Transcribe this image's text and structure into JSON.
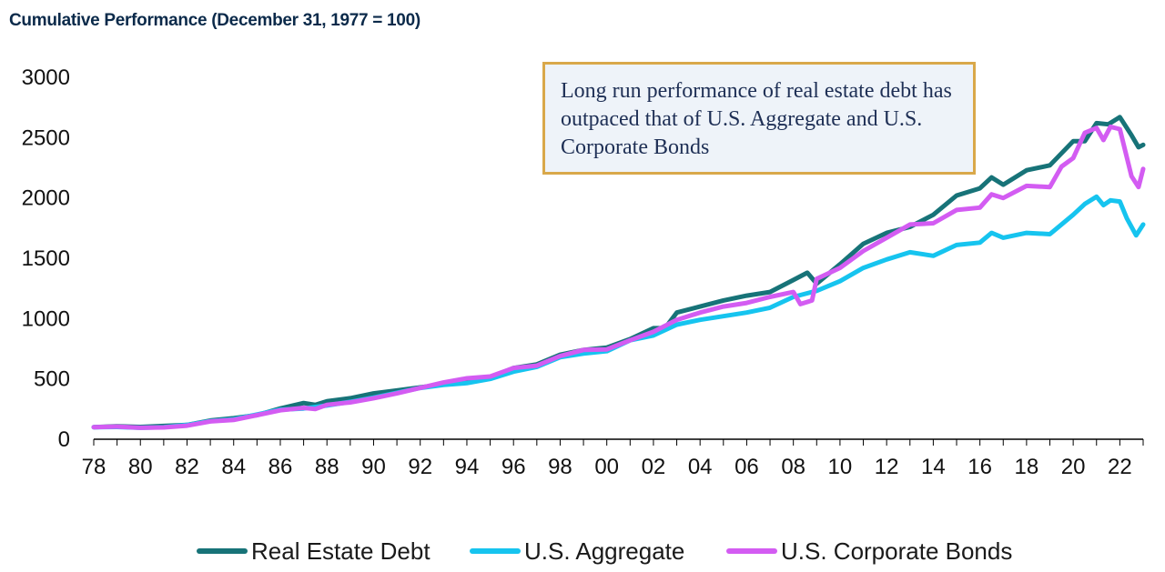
{
  "chart_data": {
    "type": "line",
    "title": "Cumulative Performance (December 31, 1977 = 100)",
    "annotation": "Long run performance of real estate debt has outpaced that of U.S. Aggregate and U.S. Corporate Bonds",
    "ylim": [
      0,
      3000
    ],
    "xlim": [
      1978,
      2023
    ],
    "yticks": [
      0,
      500,
      1000,
      1500,
      2000,
      2500,
      3000
    ],
    "xticks": [
      {
        "value": 1978,
        "label": "78"
      },
      {
        "value": 1980,
        "label": "80"
      },
      {
        "value": 1982,
        "label": "82"
      },
      {
        "value": 1984,
        "label": "84"
      },
      {
        "value": 1986,
        "label": "86"
      },
      {
        "value": 1988,
        "label": "88"
      },
      {
        "value": 1990,
        "label": "90"
      },
      {
        "value": 1992,
        "label": "92"
      },
      {
        "value": 1994,
        "label": "94"
      },
      {
        "value": 1996,
        "label": "96"
      },
      {
        "value": 1998,
        "label": "98"
      },
      {
        "value": 2000,
        "label": "00"
      },
      {
        "value": 2002,
        "label": "02"
      },
      {
        "value": 2004,
        "label": "04"
      },
      {
        "value": 2006,
        "label": "06"
      },
      {
        "value": 2008,
        "label": "08"
      },
      {
        "value": 2010,
        "label": "10"
      },
      {
        "value": 2012,
        "label": "12"
      },
      {
        "value": 2014,
        "label": "14"
      },
      {
        "value": 2016,
        "label": "16"
      },
      {
        "value": 2018,
        "label": "18"
      },
      {
        "value": 2020,
        "label": "20"
      },
      {
        "value": 2022,
        "label": "22"
      }
    ],
    "grid": false,
    "legend_position": "bottom",
    "series": [
      {
        "name": "Real Estate Debt",
        "color": "#177378",
        "points": [
          [
            1978,
            100
          ],
          [
            1979,
            108
          ],
          [
            1980,
            102
          ],
          [
            1981,
            110
          ],
          [
            1982,
            118
          ],
          [
            1983,
            155
          ],
          [
            1984,
            175
          ],
          [
            1985,
            200
          ],
          [
            1986,
            255
          ],
          [
            1987,
            300
          ],
          [
            1987.5,
            285
          ],
          [
            1988,
            315
          ],
          [
            1989,
            340
          ],
          [
            1990,
            380
          ],
          [
            1991,
            405
          ],
          [
            1992,
            430
          ],
          [
            1993,
            455
          ],
          [
            1994,
            475
          ],
          [
            1995,
            510
          ],
          [
            1996,
            590
          ],
          [
            1997,
            620
          ],
          [
            1998,
            700
          ],
          [
            1999,
            740
          ],
          [
            2000,
            760
          ],
          [
            2001,
            830
          ],
          [
            2002,
            920
          ],
          [
            2002.5,
            920
          ],
          [
            2003,
            1050
          ],
          [
            2004,
            1100
          ],
          [
            2005,
            1150
          ],
          [
            2006,
            1190
          ],
          [
            2007,
            1220
          ],
          [
            2008,
            1320
          ],
          [
            2008.6,
            1380
          ],
          [
            2009,
            1290
          ],
          [
            2010,
            1450
          ],
          [
            2011,
            1620
          ],
          [
            2012,
            1710
          ],
          [
            2013,
            1760
          ],
          [
            2014,
            1860
          ],
          [
            2015,
            2020
          ],
          [
            2016,
            2080
          ],
          [
            2016.5,
            2170
          ],
          [
            2017,
            2110
          ],
          [
            2018,
            2230
          ],
          [
            2019,
            2270
          ],
          [
            2020,
            2470
          ],
          [
            2020.5,
            2470
          ],
          [
            2021,
            2620
          ],
          [
            2021.5,
            2610
          ],
          [
            2022,
            2670
          ],
          [
            2022.5,
            2520
          ],
          [
            2022.8,
            2420
          ],
          [
            2023,
            2440
          ]
        ]
      },
      {
        "name": "U.S. Aggregate",
        "color": "#16c4ef",
        "points": [
          [
            1978,
            100
          ],
          [
            1979,
            102
          ],
          [
            1980,
            95
          ],
          [
            1981,
            100
          ],
          [
            1982,
            118
          ],
          [
            1983,
            150
          ],
          [
            1984,
            165
          ],
          [
            1985,
            205
          ],
          [
            1986,
            245
          ],
          [
            1987,
            255
          ],
          [
            1988,
            280
          ],
          [
            1989,
            310
          ],
          [
            1990,
            345
          ],
          [
            1991,
            385
          ],
          [
            1992,
            425
          ],
          [
            1993,
            450
          ],
          [
            1994,
            465
          ],
          [
            1995,
            500
          ],
          [
            1996,
            560
          ],
          [
            1997,
            600
          ],
          [
            1998,
            680
          ],
          [
            1999,
            710
          ],
          [
            2000,
            730
          ],
          [
            2001,
            820
          ],
          [
            2002,
            860
          ],
          [
            2003,
            950
          ],
          [
            2004,
            990
          ],
          [
            2005,
            1020
          ],
          [
            2006,
            1050
          ],
          [
            2007,
            1090
          ],
          [
            2008,
            1180
          ],
          [
            2009,
            1230
          ],
          [
            2010,
            1310
          ],
          [
            2011,
            1420
          ],
          [
            2012,
            1490
          ],
          [
            2013,
            1550
          ],
          [
            2014,
            1520
          ],
          [
            2015,
            1610
          ],
          [
            2016,
            1630
          ],
          [
            2016.5,
            1710
          ],
          [
            2017,
            1670
          ],
          [
            2018,
            1710
          ],
          [
            2019,
            1700
          ],
          [
            2020,
            1860
          ],
          [
            2020.5,
            1950
          ],
          [
            2021,
            2010
          ],
          [
            2021.3,
            1940
          ],
          [
            2021.6,
            1980
          ],
          [
            2022,
            1970
          ],
          [
            2022.3,
            1830
          ],
          [
            2022.7,
            1690
          ],
          [
            2023,
            1780
          ]
        ]
      },
      {
        "name": "U.S. Corporate Bonds",
        "color": "#d35cf2",
        "points": [
          [
            1978,
            100
          ],
          [
            1979,
            105
          ],
          [
            1980,
            95
          ],
          [
            1981,
            98
          ],
          [
            1982,
            112
          ],
          [
            1983,
            148
          ],
          [
            1984,
            160
          ],
          [
            1985,
            200
          ],
          [
            1986,
            240
          ],
          [
            1987,
            260
          ],
          [
            1987.5,
            250
          ],
          [
            1988,
            285
          ],
          [
            1989,
            305
          ],
          [
            1990,
            340
          ],
          [
            1991,
            380
          ],
          [
            1992,
            425
          ],
          [
            1993,
            470
          ],
          [
            1994,
            505
          ],
          [
            1995,
            520
          ],
          [
            1996,
            590
          ],
          [
            1997,
            610
          ],
          [
            1998,
            690
          ],
          [
            1999,
            740
          ],
          [
            2000,
            745
          ],
          [
            2001,
            820
          ],
          [
            2002,
            890
          ],
          [
            2003,
            990
          ],
          [
            2004,
            1050
          ],
          [
            2005,
            1100
          ],
          [
            2006,
            1130
          ],
          [
            2007,
            1180
          ],
          [
            2008,
            1220
          ],
          [
            2008.3,
            1120
          ],
          [
            2008.8,
            1150
          ],
          [
            2009,
            1330
          ],
          [
            2010,
            1420
          ],
          [
            2011,
            1560
          ],
          [
            2012,
            1670
          ],
          [
            2013,
            1780
          ],
          [
            2014,
            1790
          ],
          [
            2015,
            1900
          ],
          [
            2016,
            1920
          ],
          [
            2016.5,
            2030
          ],
          [
            2017,
            2000
          ],
          [
            2018,
            2100
          ],
          [
            2019,
            2090
          ],
          [
            2019.5,
            2260
          ],
          [
            2020,
            2330
          ],
          [
            2020.5,
            2540
          ],
          [
            2021,
            2580
          ],
          [
            2021.3,
            2480
          ],
          [
            2021.6,
            2590
          ],
          [
            2022,
            2570
          ],
          [
            2022.5,
            2180
          ],
          [
            2022.8,
            2090
          ],
          [
            2023,
            2240
          ]
        ]
      }
    ]
  }
}
